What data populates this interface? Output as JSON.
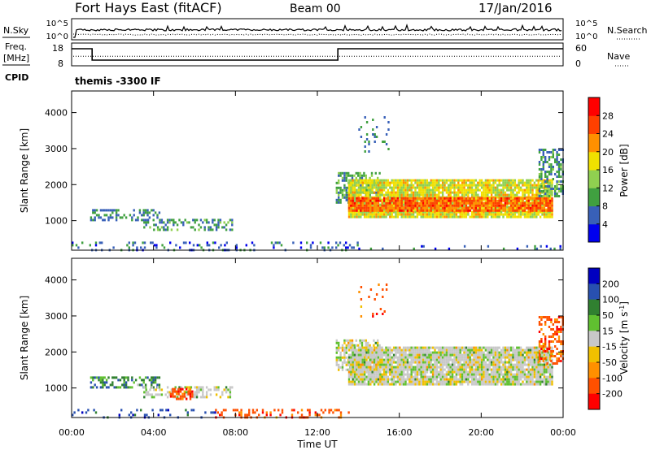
{
  "header": {
    "station": "Fort Hays East (fitACF)",
    "beam": "Beam 00",
    "date": "17/Jan/2016"
  },
  "chart_data": [
    {
      "type": "line",
      "panel": "noise",
      "left_label": "N.Sky",
      "left_ticks": [
        "10^5",
        "10^0"
      ],
      "right_label": "N.Search",
      "right_ticks": [
        "10^5",
        "10^0"
      ],
      "series": [
        {
          "name": "N.Sky",
          "style": "solid"
        },
        {
          "name": "N.Search",
          "style": "dotted"
        }
      ]
    },
    {
      "type": "line",
      "panel": "frequency",
      "left_label_1": "Freq.",
      "left_label_2": "[MHz]",
      "left_ticks": [
        {
          "v": 18,
          "label": "18"
        },
        {
          "v": 8,
          "label": "8"
        }
      ],
      "ylim_left": [
        8,
        18
      ],
      "right_label": "Nave",
      "right_ticks": [
        {
          "v": 60,
          "label": "60"
        },
        {
          "v": 0,
          "label": "0"
        }
      ],
      "ylim_right": [
        0,
        60
      ],
      "freq_steps": [
        {
          "t0": 0.0,
          "t1": 1.0,
          "mhz": 15.5
        },
        {
          "t0": 1.0,
          "t1": 13.0,
          "mhz": 10.5
        },
        {
          "t0": 13.0,
          "t1": 24.0,
          "mhz": 15.5
        }
      ],
      "nave": 25
    },
    {
      "type": "text",
      "panel": "cpid",
      "label": "CPID",
      "program": "themis -3300 IF"
    },
    {
      "type": "heatmap",
      "panel": "power",
      "ylabel": "Slant Range [km]",
      "ylim": [
        180,
        4600
      ],
      "yticks": [
        1000,
        2000,
        3000,
        4000
      ],
      "xlim": [
        0,
        24
      ],
      "colorbar": {
        "label": "Power [dB]",
        "ticks": [
          4,
          8,
          12,
          16,
          20,
          24,
          28
        ],
        "range": [
          0,
          32
        ],
        "colors": [
          "#0000ee",
          "#3860b8",
          "#40a040",
          "#90d050",
          "#f0e000",
          "#ff9000",
          "#ff4000",
          "#ff0000"
        ]
      },
      "regions": [
        {
          "t0": 0.9,
          "t1": 4.3,
          "r0": 1000,
          "r1": 1320,
          "level": 8,
          "density": 0.45
        },
        {
          "t0": 3.5,
          "t1": 7.8,
          "r0": 740,
          "r1": 1050,
          "level": 9,
          "density": 0.45
        },
        {
          "t0": 0.0,
          "t1": 14.0,
          "r0": 200,
          "r1": 420,
          "level": 6,
          "density": 0.22
        },
        {
          "t0": 12.9,
          "t1": 15.0,
          "r0": 1500,
          "r1": 2350,
          "level": 10,
          "density": 0.55
        },
        {
          "t0": 13.5,
          "t1": 23.5,
          "r0": 1100,
          "r1": 2150,
          "level": 17,
          "density": 0.9
        },
        {
          "t0": 13.5,
          "t1": 23.5,
          "r0": 1250,
          "r1": 1650,
          "level": 25,
          "density": 0.85
        },
        {
          "t0": 22.8,
          "t1": 24.0,
          "r0": 1700,
          "r1": 3000,
          "level": 9,
          "density": 0.5
        },
        {
          "t0": 14.0,
          "t1": 15.5,
          "r0": 2900,
          "r1": 3900,
          "level": 8,
          "density": 0.08
        },
        {
          "t0": 14.0,
          "t1": 24.0,
          "r0": 200,
          "r1": 320,
          "level": 5,
          "density": 0.15
        }
      ]
    },
    {
      "type": "heatmap",
      "panel": "velocity",
      "ylabel": "Slant Range [km]",
      "xlabel": "Time UT",
      "ylim": [
        180,
        4600
      ],
      "yticks": [
        1000,
        2000,
        3000,
        4000
      ],
      "xlim": [
        0,
        24
      ],
      "xticks": [
        {
          "v": 0,
          "label": "00:00"
        },
        {
          "v": 4,
          "label": "04:00"
        },
        {
          "v": 8,
          "label": "08:00"
        },
        {
          "v": 12,
          "label": "12:00"
        },
        {
          "v": 16,
          "label": "16:00"
        },
        {
          "v": 20,
          "label": "20:00"
        },
        {
          "v": 24,
          "label": "00:00"
        }
      ],
      "colorbar": {
        "label": "Velocity [m s-1]",
        "label_main": "Velocity [m s",
        "label_sup": "-1",
        "label_end": "]",
        "ticks": [
          {
            "v": 200,
            "label": "200"
          },
          {
            "v": 100,
            "label": "100"
          },
          {
            "v": 50,
            "label": "50"
          },
          {
            "v": 15,
            "label": "15"
          },
          {
            "v": -15,
            "label": "-15"
          },
          {
            "v": -50,
            "label": "-50"
          },
          {
            "v": -100,
            "label": "-100"
          },
          {
            "v": -200,
            "label": "-200"
          }
        ],
        "colors": [
          "#ff0000",
          "#ff5000",
          "#ff9000",
          "#f0c000",
          "#c8c8c8",
          "#60c030",
          "#308030",
          "#2850b0",
          "#0000c0"
        ]
      },
      "regions": [
        {
          "t0": 0.9,
          "t1": 4.3,
          "r0": 1000,
          "r1": 1320,
          "level": 2,
          "density": 0.45
        },
        {
          "t0": 3.5,
          "t1": 7.8,
          "r0": 740,
          "r1": 1050,
          "level": 0,
          "density": 0.45
        },
        {
          "t0": 4.8,
          "t1": 5.9,
          "r0": 700,
          "r1": 1000,
          "level": -3,
          "density": 0.6
        },
        {
          "t0": 7.0,
          "t1": 13.5,
          "r0": 200,
          "r1": 420,
          "level": -3,
          "density": 0.28
        },
        {
          "t0": 0.0,
          "t1": 7.0,
          "r0": 200,
          "r1": 420,
          "level": 3,
          "density": 0.2
        },
        {
          "t0": 12.9,
          "t1": 15.0,
          "r0": 1500,
          "r1": 2350,
          "level": 0,
          "density": 0.6
        },
        {
          "t0": 13.5,
          "t1": 23.5,
          "r0": 1100,
          "r1": 2150,
          "level": 0,
          "density": 0.92
        },
        {
          "t0": 22.8,
          "t1": 24.0,
          "r0": 1700,
          "r1": 3000,
          "level": -3,
          "density": 0.45
        },
        {
          "t0": 14.0,
          "t1": 15.5,
          "r0": 2900,
          "r1": 3900,
          "level": -3,
          "density": 0.08
        }
      ]
    }
  ]
}
